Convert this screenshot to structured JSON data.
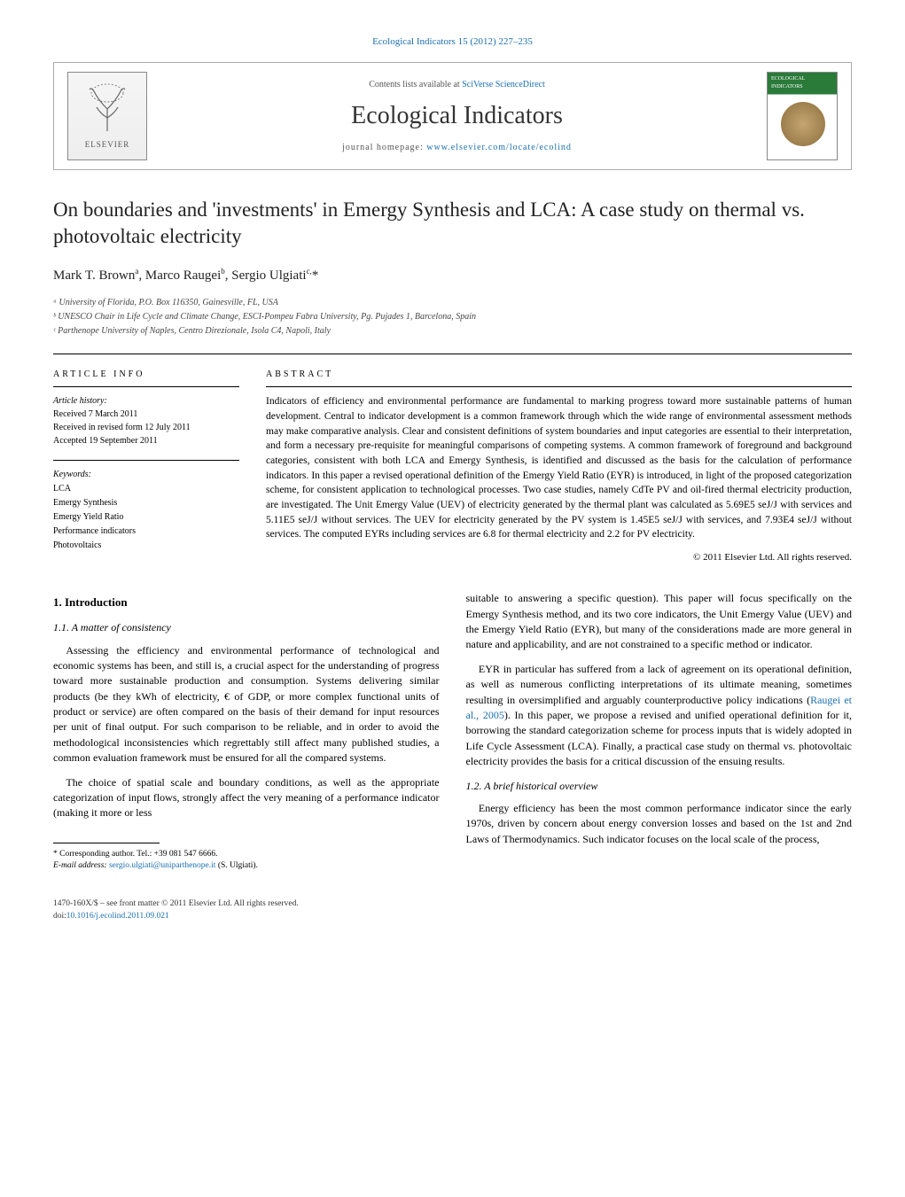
{
  "journal_ref": {
    "text_prefix": "Ecological Indicators 15 (2012) 227–235",
    "link_text": "Ecological Indicators"
  },
  "header": {
    "contents_prefix": "Contents lists available at ",
    "contents_link": "SciVerse ScienceDirect",
    "journal_name": "Ecological Indicators",
    "homepage_prefix": "journal homepage: ",
    "homepage_link": "www.elsevier.com/locate/ecolind",
    "publisher_name": "ELSEVIER",
    "cover_label": "ECOLOGICAL INDICATORS"
  },
  "title": "On boundaries and 'investments' in Emergy Synthesis and LCA: A case study on thermal vs. photovoltaic electricity",
  "authors_html": "Mark T. Brown<sup>a</sup>, Marco Raugei<sup>b</sup>, Sergio Ulgiati<sup>c,</sup>*",
  "affiliations": [
    "ᵃ University of Florida, P.O. Box 116350, Gainesville, FL, USA",
    "ᵇ UNESCO Chair in Life Cycle and Climate Change, ESCI-Pompeu Fabra University, Pg. Pujades 1, Barcelona, Spain",
    "ᶜ Parthenope University of Naples, Centro Direzionale, Isola C4, Napoli, Italy"
  ],
  "article_info": {
    "header": "article info",
    "history_label": "Article history:",
    "history_lines": [
      "Received 7 March 2011",
      "Received in revised form 12 July 2011",
      "Accepted 19 September 2011"
    ],
    "keywords_label": "Keywords:",
    "keywords": [
      "LCA",
      "Emergy Synthesis",
      "Emergy Yield Ratio",
      "Performance indicators",
      "Photovoltaics"
    ]
  },
  "abstract": {
    "header": "abstract",
    "text": "Indicators of efficiency and environmental performance are fundamental to marking progress toward more sustainable patterns of human development. Central to indicator development is a common framework through which the wide range of environmental assessment methods may make comparative analysis. Clear and consistent definitions of system boundaries and input categories are essential to their interpretation, and form a necessary pre-requisite for meaningful comparisons of competing systems. A common framework of foreground and background categories, consistent with both LCA and Emergy Synthesis, is identified and discussed as the basis for the calculation of performance indicators. In this paper a revised operational definition of the Emergy Yield Ratio (EYR) is introduced, in light of the proposed categorization scheme, for consistent application to technological processes. Two case studies, namely CdTe PV and oil-fired thermal electricity production, are investigated. The Unit Emergy Value (UEV) of electricity generated by the thermal plant was calculated as 5.69E5 seJ/J with services and 5.11E5 seJ/J without services. The UEV for electricity generated by the PV system is 1.45E5 seJ/J with services, and 7.93E4 seJ/J without services. The computed EYRs including services are 6.8 for thermal electricity and 2.2 for PV electricity.",
    "copyright": "© 2011 Elsevier Ltd. All rights reserved."
  },
  "body": {
    "section1_heading": "1. Introduction",
    "section11_heading": "1.1. A matter of consistency",
    "p1": "Assessing the efficiency and environmental performance of technological and economic systems has been, and still is, a crucial aspect for the understanding of progress toward more sustainable production and consumption. Systems delivering similar products (be they kWh of electricity, € of GDP, or more complex functional units of product or service) are often compared on the basis of their demand for input resources per unit of final output. For such comparison to be reliable, and in order to avoid the methodological inconsistencies which regrettably still affect many published studies, a common evaluation framework must be ensured for all the compared systems.",
    "p2": "The choice of spatial scale and boundary conditions, as well as the appropriate categorization of input flows, strongly affect the very meaning of a performance indicator (making it more or less",
    "p3": "suitable to answering a specific question). This paper will focus specifically on the Emergy Synthesis method, and its two core indicators, the Unit Emergy Value (UEV) and the Emergy Yield Ratio (EYR), but many of the considerations made are more general in nature and applicability, and are not constrained to a specific method or indicator.",
    "p4_pre": "EYR in particular has suffered from a lack of agreement on its operational definition, as well as numerous conflicting interpretations of its ultimate meaning, sometimes resulting in oversimplified and arguably counterproductive policy indications (",
    "p4_ref": "Raugei et al., 2005",
    "p4_post": "). In this paper, we propose a revised and unified operational definition for it, borrowing the standard categorization scheme for process inputs that is widely adopted in Life Cycle Assessment (LCA). Finally, a practical case study on thermal vs. photovoltaic electricity provides the basis for a critical discussion of the ensuing results.",
    "section12_heading": "1.2. A brief historical overview",
    "p5": "Energy efficiency has been the most common performance indicator since the early 1970s, driven by concern about energy conversion losses and based on the 1st and 2nd Laws of Thermodynamics. Such indicator focuses on the local scale of the process,"
  },
  "footnote": {
    "corr_label": "* Corresponding author. Tel.: +39 081 547 6666.",
    "email_label": "E-mail address: ",
    "email": "sergio.ulgiati@uniparthenope.it",
    "email_suffix": " (S. Ulgiati)."
  },
  "footer": {
    "line1": "1470-160X/$ – see front matter © 2011 Elsevier Ltd. All rights reserved.",
    "doi_prefix": "doi:",
    "doi": "10.1016/j.ecolind.2011.09.021"
  },
  "colors": {
    "link": "#1a6fb0",
    "text": "#000000",
    "muted": "#555555",
    "rule": "#000000"
  }
}
